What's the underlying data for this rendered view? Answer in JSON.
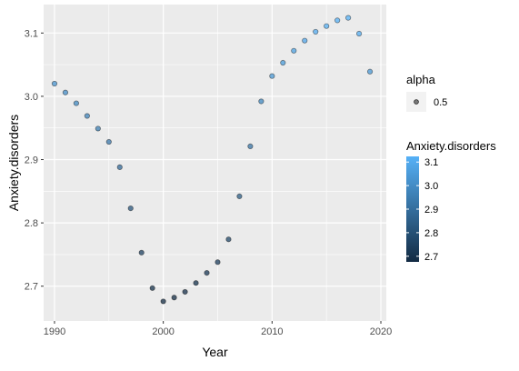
{
  "chart_data": {
    "type": "scatter",
    "title": "",
    "xlabel": "Year",
    "ylabel": "Anxiety.disorders",
    "xlim": [
      1989,
      2020.5
    ],
    "ylim": [
      2.645,
      3.145
    ],
    "x_ticks": [
      1990,
      2000,
      2010,
      2020
    ],
    "x_minor_ticks": [
      1995,
      2005,
      2015
    ],
    "y_ticks": [
      2.7,
      2.8,
      2.9,
      3.0,
      3.1
    ],
    "y_tick_labels": [
      "2.7",
      "2.8",
      "2.9",
      "3.0",
      "3.1"
    ],
    "y_minor_ticks": [
      2.75,
      2.85,
      2.95,
      3.05
    ],
    "grid": true,
    "x": [
      1990,
      1991,
      1992,
      1993,
      1994,
      1995,
      1996,
      1997,
      1998,
      1999,
      2000,
      2001,
      2002,
      2003,
      2004,
      2005,
      2006,
      2007,
      2008,
      2009,
      2010,
      2011,
      2012,
      2013,
      2014,
      2015,
      2016,
      2017,
      2018,
      2019
    ],
    "y": [
      3.02,
      3.006,
      2.989,
      2.969,
      2.949,
      2.928,
      2.888,
      2.823,
      2.753,
      2.697,
      2.676,
      2.682,
      2.691,
      2.705,
      2.721,
      2.738,
      2.774,
      2.842,
      2.921,
      2.992,
      3.032,
      3.053,
      3.072,
      3.088,
      3.102,
      3.111,
      3.12,
      3.124,
      3.099,
      3.039
    ],
    "legend": {
      "placement": "right",
      "alpha": {
        "title": "alpha",
        "label": "0.5"
      },
      "color": {
        "title": "Anxiety.disorders",
        "range": [
          2.676,
          3.124
        ],
        "ticks": [
          2.7,
          2.8,
          2.9,
          3.0,
          3.1
        ],
        "tick_labels": [
          "2.7",
          "2.8",
          "2.9",
          "3.0",
          "3.1"
        ],
        "low_color": "#132B43",
        "high_color": "#56B1F7"
      }
    },
    "panel_background": "#EBEBEB",
    "grid_color": "#FFFFFF"
  }
}
